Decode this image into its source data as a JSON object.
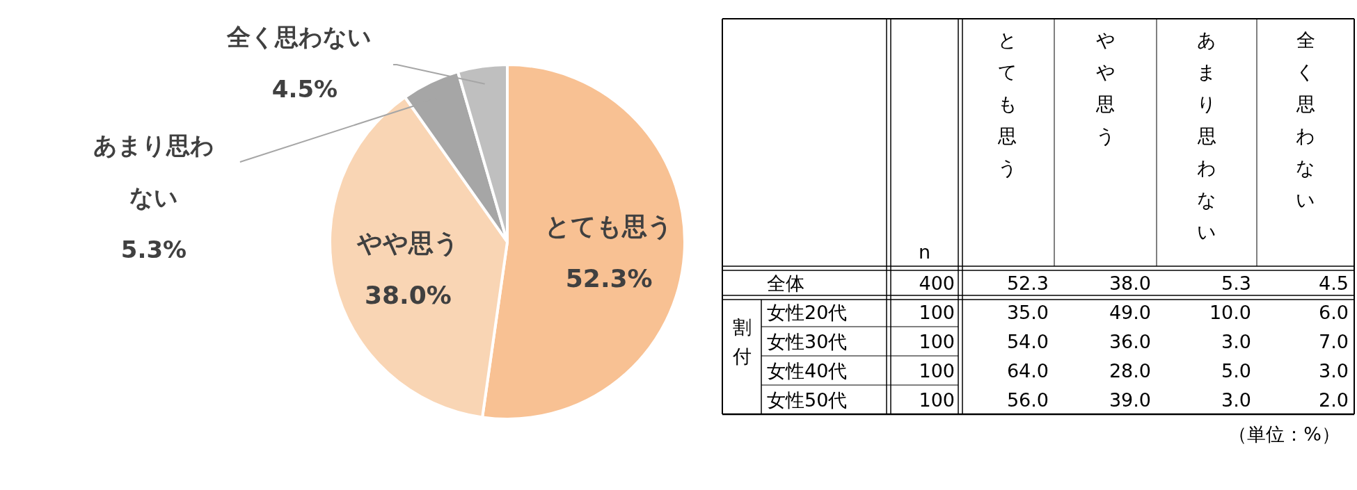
{
  "chart_data": [
    {
      "type": "pie",
      "categories": [
        "とても思う",
        "やや思う",
        "あまり思わない",
        "全く思わない"
      ],
      "values": [
        52.3,
        38.0,
        5.3,
        4.5
      ],
      "colors": [
        "#f8c193",
        "#f9d5b4",
        "#a6a6a6",
        "#bfbfbf"
      ],
      "value_labels": [
        "52.3%",
        "38.0%",
        "5.3%",
        "4.5%"
      ]
    },
    {
      "type": "heatmap",
      "categories": [
        "n",
        "とても思う",
        "やや思う",
        "あまり思わない",
        "全く思わない"
      ],
      "y_categories": [
        "全体",
        "女性20代",
        "女性30代",
        "女性40代",
        "女性50代"
      ],
      "cells": [
        [
          400,
          52.3,
          38.0,
          5.3,
          4.5
        ],
        [
          100,
          35.0,
          49.0,
          10.0,
          6.0
        ],
        [
          100,
          54.0,
          36.0,
          3.0,
          7.0
        ],
        [
          100,
          64.0,
          28.0,
          5.0,
          3.0
        ],
        [
          100,
          56.0,
          39.0,
          3.0,
          2.0
        ]
      ],
      "cell_labels": [
        [
          "400",
          "52.3",
          "38.0",
          "5.3",
          "4.5"
        ],
        [
          "100",
          "35.0",
          "49.0",
          "10.0",
          "6.0"
        ],
        [
          "100",
          "54.0",
          "36.0",
          "3.0",
          "7.0"
        ],
        [
          "100",
          "64.0",
          "28.0",
          "5.0",
          "3.0"
        ],
        [
          "100",
          "56.0",
          "39.0",
          "3.0",
          "2.0"
        ]
      ],
      "annotations": [
        "割付",
        "（単位：%）"
      ]
    }
  ]
}
